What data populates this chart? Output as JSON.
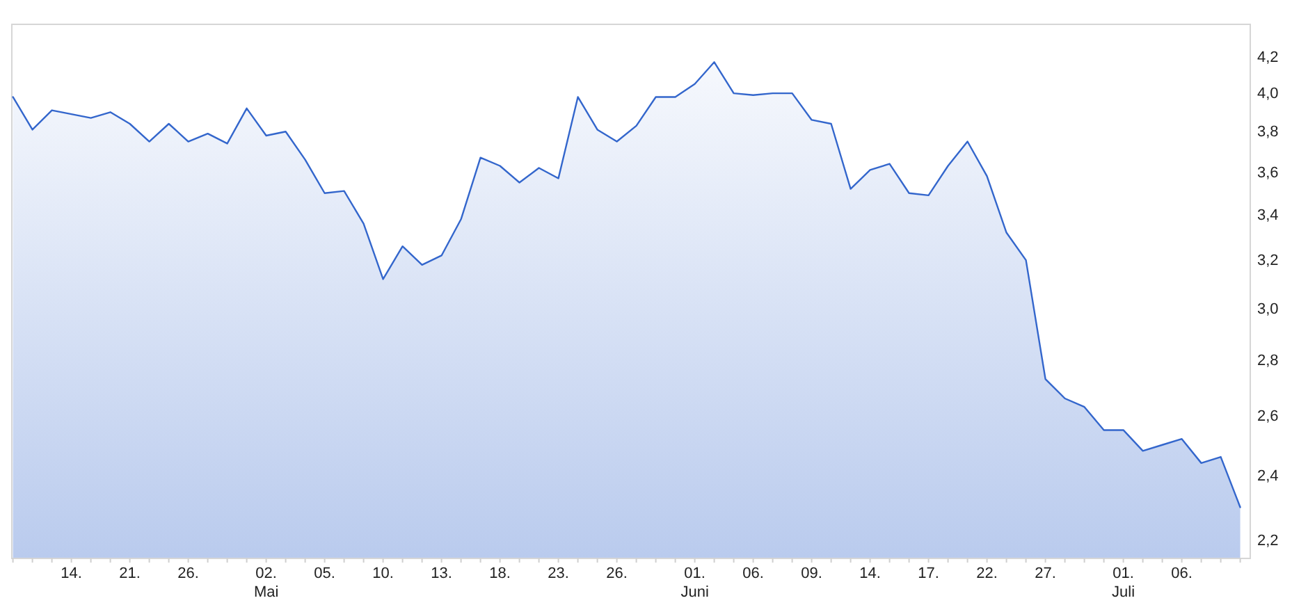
{
  "chart_data": {
    "type": "area",
    "categories": [
      null,
      null,
      null,
      "14.",
      null,
      null,
      "21.",
      null,
      null,
      "26.",
      null,
      null,
      null,
      "02.\nMai",
      null,
      null,
      "05.",
      null,
      null,
      "10.",
      null,
      null,
      "13.",
      null,
      null,
      "18.",
      null,
      null,
      "23.",
      null,
      null,
      "26.",
      null,
      null,
      null,
      "01.\nJuni",
      null,
      null,
      "06.",
      null,
      null,
      "09.",
      null,
      null,
      "14.",
      null,
      null,
      "17.",
      null,
      null,
      "22.",
      null,
      null,
      "27.",
      null,
      null,
      null,
      "01.\nJuli",
      null,
      null,
      "06.",
      null,
      null,
      null
    ],
    "series": [
      {
        "color": "#3366cc",
        "values": [
          3.98,
          3.81,
          3.91,
          3.89,
          3.87,
          3.9,
          3.84,
          3.75,
          3.84,
          3.75,
          3.79,
          3.74,
          3.92,
          3.78,
          3.8,
          3.66,
          3.5,
          3.51,
          3.36,
          3.12,
          3.26,
          3.18,
          3.22,
          3.38,
          3.67,
          3.63,
          3.55,
          3.62,
          3.57,
          3.98,
          3.81,
          3.75,
          3.83,
          3.98,
          3.98,
          4.05,
          4.17,
          4.0,
          3.99,
          4.0,
          4.0,
          3.86,
          3.84,
          3.52,
          3.61,
          3.64,
          3.5,
          3.49,
          3.63,
          3.75,
          3.58,
          3.32,
          3.2,
          2.73,
          2.66,
          2.63,
          2.55,
          2.55,
          2.48,
          2.5,
          2.52,
          2.44,
          2.46,
          2.3
        ]
      }
    ],
    "log": true,
    "ylim": [
      2.15,
      4.39
    ],
    "yticks": [
      {
        "value": 2.2,
        "label": "2,2"
      },
      {
        "value": 2.4,
        "label": "2,4"
      },
      {
        "value": 2.6,
        "label": "2,6"
      },
      {
        "value": 2.8,
        "label": "2,8"
      },
      {
        "value": 3.0,
        "label": "3,0"
      },
      {
        "value": 3.2,
        "label": "3,2"
      },
      {
        "value": 3.4,
        "label": "3,4"
      },
      {
        "value": 3.6,
        "label": "3,6"
      },
      {
        "value": 3.8,
        "label": "3,8"
      },
      {
        "value": 4.0,
        "label": "4,0"
      },
      {
        "value": 4.2,
        "label": "4,2"
      }
    ]
  }
}
